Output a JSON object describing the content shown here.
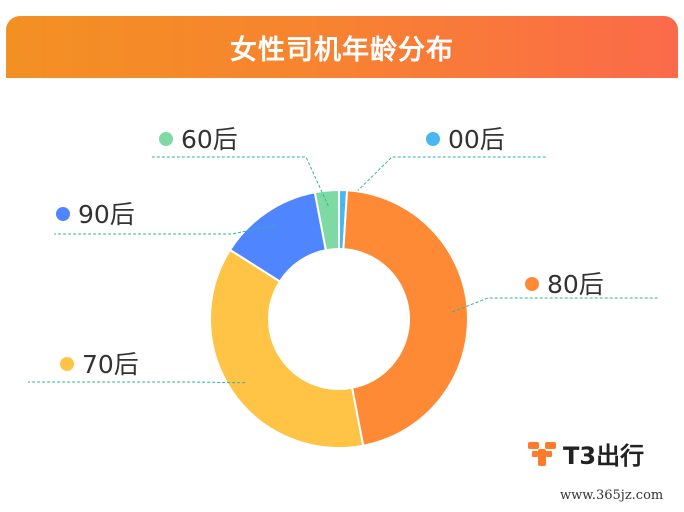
{
  "header": {
    "title": "女性司机年龄分布"
  },
  "chart_data": {
    "type": "pie",
    "donut": true,
    "title": "女性司机年龄分布",
    "categories": [
      "00后",
      "80后",
      "70后",
      "90后",
      "60后"
    ],
    "values": [
      1,
      46,
      37,
      13,
      3
    ],
    "colors": [
      "#4ab8f0",
      "#ff8a35",
      "#ffc445",
      "#4f86ff",
      "#7fd9a4"
    ],
    "legend_placement": "labels-around"
  },
  "brand": {
    "logo_text": "T3出行",
    "logo_color": "#ff7a2b"
  },
  "watermark": {
    "text": "www.365jz.com"
  }
}
